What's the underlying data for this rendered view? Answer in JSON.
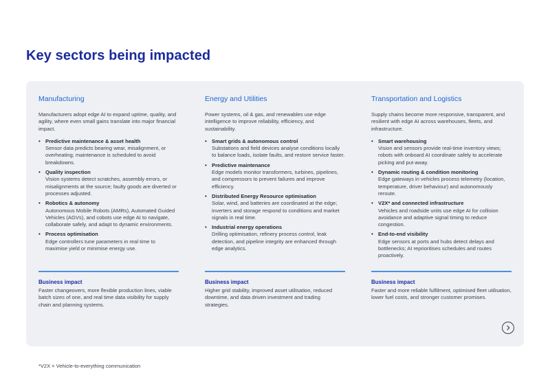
{
  "page": {
    "title": "Key sectors being impacted"
  },
  "columns": [
    {
      "heading": "Manufacturing",
      "intro": "Manufacturers adopt edge AI to expand uptime, quality, and agility, where even small gains translate into major financial impact.",
      "items": [
        {
          "title": "Predictive maintenance & asset health",
          "desc": "Sensor data predicts bearing wear, misalignment, or overheating; maintenance is scheduled to avoid breakdowns."
        },
        {
          "title": "Quality inspection",
          "desc": "Vision systems detect scratches, assembly errors, or misalignments at the source; faulty goods are diverted or processes adjusted."
        },
        {
          "title": "Robotics & autonomy",
          "desc": "Autonomous Mobile Robots (AMRs), Automated Guided Vehicles (AGVs), and cobots use edge AI to navigate, collaborate safely, and adapt to dynamic environments."
        },
        {
          "title": "Process optimisation",
          "desc": "Edge controllers tune parameters in real time to maximise yield or minimise energy use."
        }
      ],
      "impact_label": "Business impact",
      "impact_text": "Faster changeovers, more flexible production lines, viable batch sizes of one, and real time data visibility for supply chain and planning systems."
    },
    {
      "heading": "Energy and Utilities",
      "intro": "Power systems, oil & gas, and renewables use edge intelligence to improve reliability, efficiency, and sustainability.",
      "items": [
        {
          "title": "Smart grids & autonomous control",
          "desc": "Substations and field devices analyse conditions locally to balance loads, isolate faults, and restore service faster."
        },
        {
          "title": "Predictive maintenance",
          "desc": "Edge models monitor transformers, turbines, pipelines, and compressors to prevent failures and improve efficiency."
        },
        {
          "title": "Distributed Energy Resource optimisation",
          "desc": "Solar, wind, and batteries are coordinated at the edge; inverters and storage respond to conditions and market signals in real time."
        },
        {
          "title": "Industrial energy operations",
          "desc": "Drilling optimisation, refinery process control, leak detection, and pipeline integrity are enhanced through edge analytics."
        }
      ],
      "impact_label": "Business impact",
      "impact_text": "Higher grid stability, improved asset utilisation, reduced downtime, and data driven investment and trading strategies."
    },
    {
      "heading": "Transportation and Logistics",
      "intro": "Supply chains become more responsive, transparent, and resilient with edge AI across warehouses, fleets, and infrastructure.",
      "items": [
        {
          "title": "Smart warehousing",
          "desc": "Vision and sensors provide real-time inventory views; robots with onboard AI coordinate safely to accelerate picking and put-away."
        },
        {
          "title": "Dynamic routing & condition monitoring",
          "desc": "Edge gateways in vehicles process telemetry (location, temperature, driver behaviour) and autonomously reroute."
        },
        {
          "title": "V2X* and connected infrastructure",
          "desc": "Vehicles and roadside units use edge AI for collision avoidance and adaptive signal timing to reduce congestion."
        },
        {
          "title": "End-to-end visibility",
          "desc": "Edge sensors at ports and hubs detect delays and bottlenecks; AI reprioritises schedules and routes proactively."
        }
      ],
      "impact_label": "Business impact",
      "impact_text": "Faster and more reliable fulfilment, optimised fleet utilisation, lower fuel costs, and stronger customer promises."
    }
  ],
  "footnote": "*V2X = Vehicle-to-everything communication",
  "icons": {
    "next": "chevron-right-icon"
  },
  "colors": {
    "title": "#1a2a9c",
    "heading": "#1f66d1",
    "divider": "#4d8fe0",
    "panel": "#eef0f4"
  }
}
